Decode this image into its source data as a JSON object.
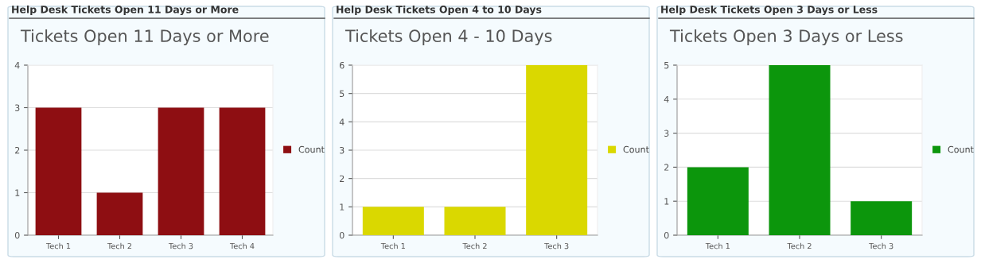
{
  "chart_data": [
    {
      "type": "bar",
      "title": "Tickets Open 11 Days or More",
      "annotations": [
        "Help Desk Tickets Open 11 Days or More"
      ],
      "categories": [
        "Tech 1",
        "Tech 2",
        "Tech 3",
        "Tech 4"
      ],
      "series": [
        {
          "name": "Count",
          "color": "#8e0e12",
          "values": [
            3,
            1,
            3,
            3
          ]
        }
      ],
      "ylim": [
        0,
        4
      ],
      "yticks": [
        0,
        1,
        2,
        3,
        4
      ],
      "grid": "y",
      "legend": "right"
    },
    {
      "type": "bar",
      "title": "Tickets Open 4 - 10 Days",
      "annotations": [
        "Help Desk Tickets Open 4 to 10 Days"
      ],
      "categories": [
        "Tech 1",
        "Tech 2",
        "Tech 3"
      ],
      "series": [
        {
          "name": "Count",
          "color": "#dad800",
          "values": [
            1,
            1,
            6
          ]
        }
      ],
      "ylim": [
        0,
        6
      ],
      "yticks": [
        0,
        1,
        2,
        3,
        4,
        5,
        6
      ],
      "grid": "y",
      "legend": "right"
    },
    {
      "type": "bar",
      "title": "Tickets Open 3 Days or Less",
      "annotations": [
        "Help Desk Tickets Open 3 Days or Less"
      ],
      "categories": [
        "Tech 1",
        "Tech 2",
        "Tech 3"
      ],
      "series": [
        {
          "name": "Count",
          "color": "#0c960c",
          "values": [
            2,
            5,
            1
          ]
        }
      ],
      "ylim": [
        0,
        5
      ],
      "yticks": [
        0,
        1,
        2,
        3,
        4,
        5
      ],
      "grid": "y",
      "legend": "right"
    }
  ]
}
